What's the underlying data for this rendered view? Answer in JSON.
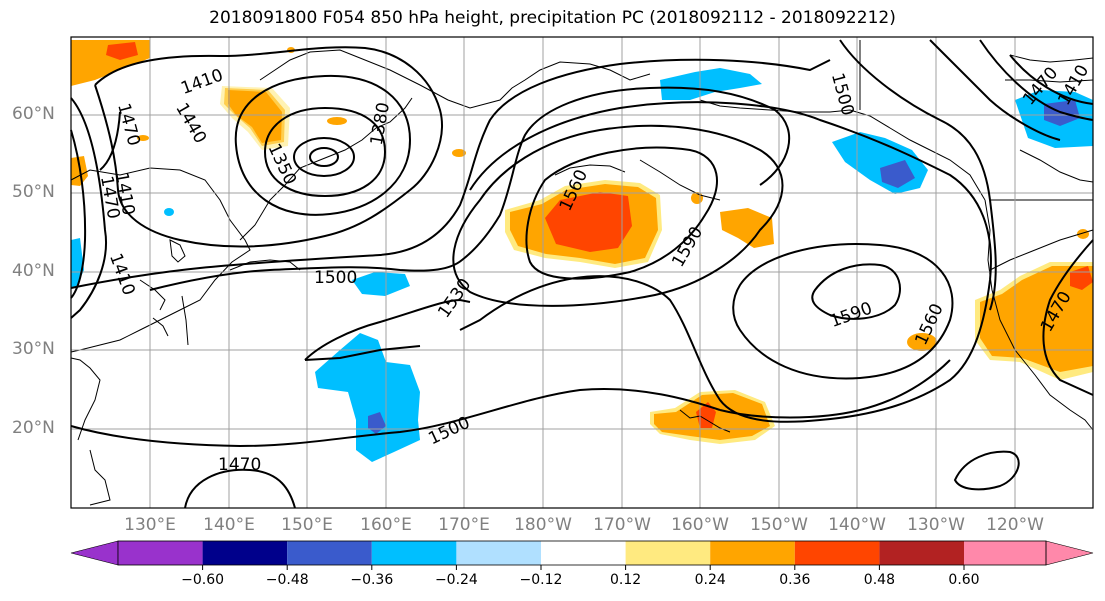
{
  "title": "2018091800 F054 850 hPa height, precipitation PC (2018092112 - 2018092212)",
  "lat_labels": [
    "60°N",
    "50°N",
    "40°N",
    "30°N",
    "20°N"
  ],
  "lon_labels": [
    "130°E",
    "140°E",
    "150°E",
    "160°E",
    "170°E",
    "180°W",
    "170°W",
    "160°W",
    "150°W",
    "140°W",
    "130°W",
    "120°W"
  ],
  "contour_labels": [
    "1410",
    "1470",
    "1440",
    "1350",
    "1380",
    "1470",
    "1410",
    "1410",
    "1500",
    "1560",
    "1590",
    "1530",
    "1590",
    "1560",
    "1500",
    "1470",
    "1500",
    "1470",
    "1470",
    "1410"
  ],
  "colorbar": {
    "labels": [
      "−0.60",
      "−0.48",
      "−0.36",
      "−0.24",
      "−0.12",
      "0.12",
      "0.24",
      "0.36",
      "0.48",
      "0.60"
    ],
    "colors": [
      "#9932cc",
      "#00008b",
      "#3a5bcc",
      "#00bfff",
      "#b0e0ff",
      "#ffffff",
      "#ffea80",
      "#ffa500",
      "#ff4500",
      "#b22222",
      "#ff88aa"
    ]
  },
  "colors": {
    "positive_light": "#ffea80",
    "positive_mid": "#ffa500",
    "positive_high": "#ff4500",
    "negative_mid": "#00bfff",
    "negative_high": "#3a5bcc",
    "grid": "#a0a0a0"
  }
}
